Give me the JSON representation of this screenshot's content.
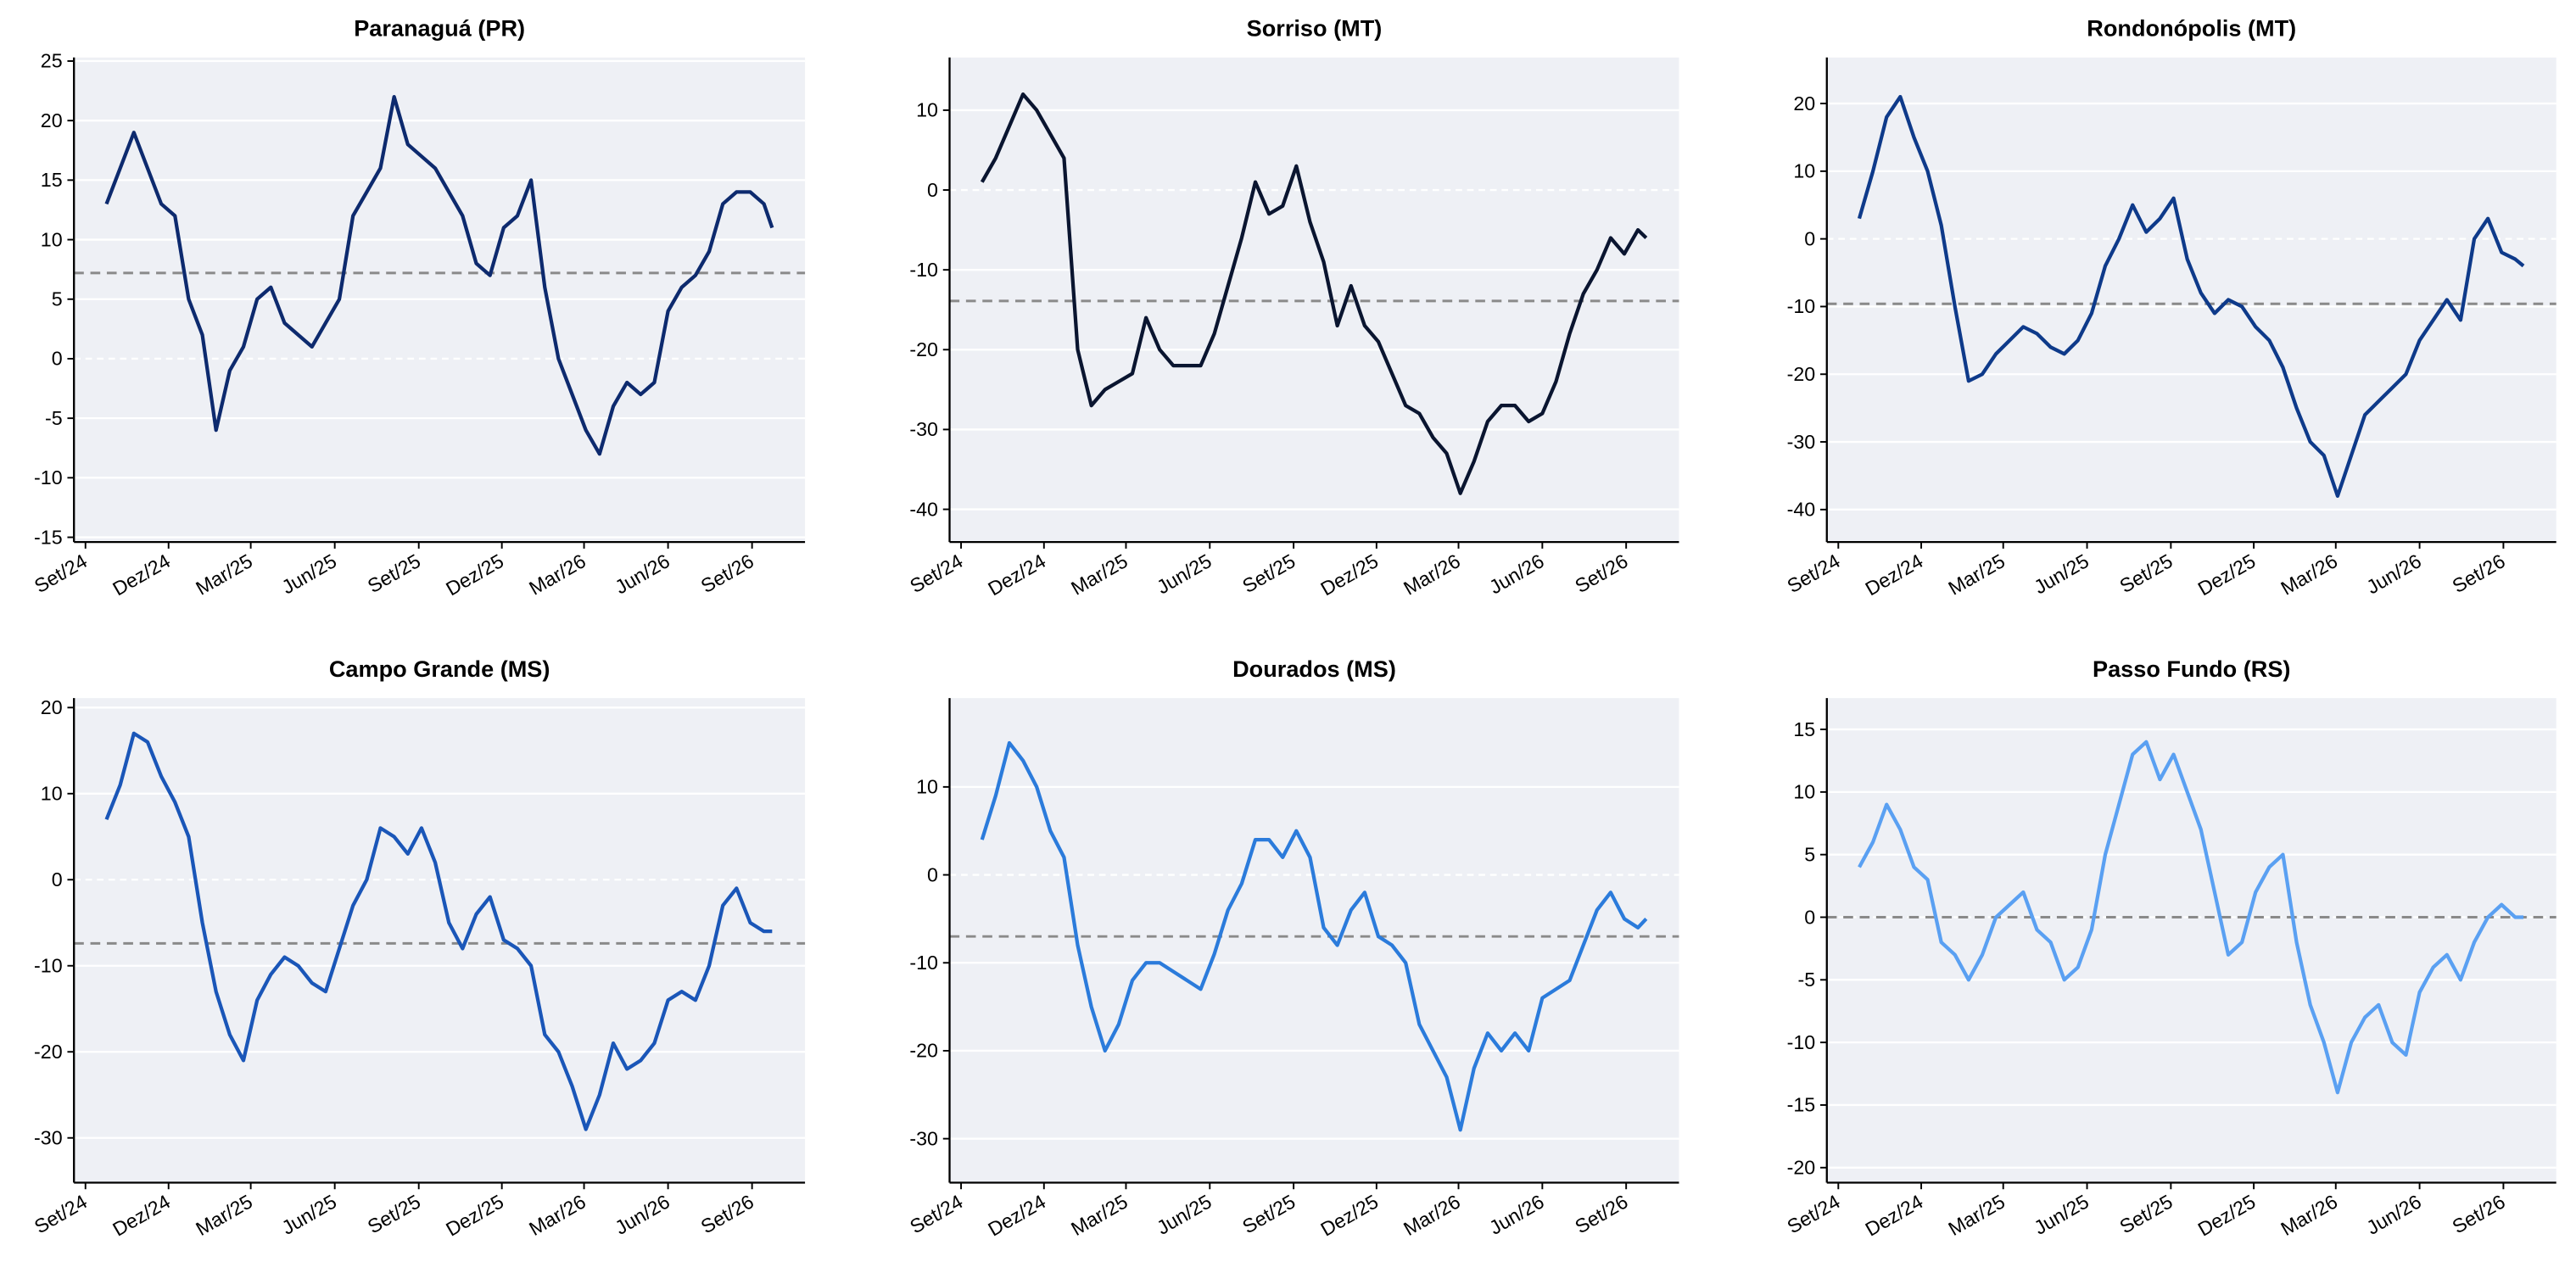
{
  "chart_data": [
    {
      "type": "line",
      "title": "Paranaguá (PR)",
      "color": "#0d2a6e",
      "reference_line": 7.2,
      "grid": true,
      "x": [
        23,
        38,
        53,
        68,
        83,
        98,
        113,
        128,
        143,
        158,
        173,
        188,
        203,
        218,
        233,
        248,
        263,
        278,
        293,
        308,
        323,
        338,
        353,
        368,
        383,
        398,
        413,
        428,
        443,
        458,
        473,
        488,
        503,
        518,
        533,
        548,
        563,
        578,
        593,
        608,
        623,
        638,
        653,
        668,
        683,
        698,
        713,
        728,
        743,
        752
      ],
      "values": [
        13,
        16,
        19,
        16,
        13,
        12,
        5,
        2,
        -6,
        -1,
        1,
        5,
        6,
        3,
        2,
        1,
        3,
        5,
        12,
        14,
        16,
        22,
        18,
        17,
        16,
        14,
        12,
        8,
        7,
        11,
        12,
        15,
        6,
        0,
        -3,
        -6,
        -8,
        -4,
        -2,
        -3,
        -2,
        4,
        6,
        7,
        9,
        13,
        14,
        14,
        13,
        11
      ],
      "xlim": [
        -12.6,
        788
      ],
      "xticks": [
        {
          "value": 0,
          "label": "Set/24"
        },
        {
          "value": 91,
          "label": "Dez/24"
        },
        {
          "value": 181,
          "label": "Mar/25"
        },
        {
          "value": 273,
          "label": "Jun/25"
        },
        {
          "value": 365,
          "label": "Set/25"
        },
        {
          "value": 456,
          "label": "Dez/25"
        },
        {
          "value": 546,
          "label": "Mar/26"
        },
        {
          "value": 638,
          "label": "Jun/26"
        },
        {
          "value": 730,
          "label": "Set/26"
        }
      ],
      "ylim": [
        -15.4,
        25.3
      ],
      "yticks": [
        -15,
        -10,
        -5,
        0,
        5,
        10,
        15,
        20,
        25
      ]
    },
    {
      "type": "line",
      "title": "Sorriso (MT)",
      "color": "#0a1530",
      "reference_line": -13.9,
      "grid": true,
      "x": [
        23,
        38,
        53,
        68,
        83,
        98,
        113,
        128,
        143,
        158,
        173,
        188,
        203,
        218,
        233,
        248,
        263,
        278,
        293,
        308,
        323,
        338,
        353,
        368,
        383,
        398,
        413,
        428,
        443,
        458,
        473,
        488,
        503,
        518,
        533,
        548,
        563,
        578,
        593,
        608,
        623,
        638,
        653,
        668,
        683,
        698,
        713,
        728,
        743,
        752
      ],
      "values": [
        1,
        4,
        8,
        12,
        10,
        7,
        4,
        -20,
        -27,
        -25,
        -24,
        -23,
        -16,
        -20,
        -22,
        -22,
        -22,
        -18,
        -12,
        -6,
        1,
        -3,
        -2,
        3,
        -4,
        -9,
        -17,
        -12,
        -17,
        -19,
        -23,
        -27,
        -28,
        -31,
        -33,
        -38,
        -34,
        -29,
        -27,
        -27,
        -29,
        -28,
        -24,
        -18,
        -13,
        -10,
        -6,
        -8,
        -5,
        -6
      ],
      "xlim": [
        -12.6,
        788
      ],
      "xticks": [
        {
          "value": 0,
          "label": "Set/24"
        },
        {
          "value": 91,
          "label": "Dez/24"
        },
        {
          "value": 181,
          "label": "Mar/25"
        },
        {
          "value": 273,
          "label": "Jun/25"
        },
        {
          "value": 365,
          "label": "Set/25"
        },
        {
          "value": 456,
          "label": "Dez/25"
        },
        {
          "value": 546,
          "label": "Mar/26"
        },
        {
          "value": 638,
          "label": "Jun/26"
        },
        {
          "value": 730,
          "label": "Set/26"
        }
      ],
      "ylim": [
        -44.1,
        16.6
      ],
      "yticks": [
        -40,
        -30,
        -20,
        -10,
        0,
        10
      ]
    },
    {
      "type": "line",
      "title": "Rondonópolis (MT)",
      "color": "#0e3a8a",
      "reference_line": -9.6,
      "grid": true,
      "x": [
        23,
        38,
        53,
        68,
        83,
        98,
        113,
        128,
        143,
        158,
        173,
        188,
        203,
        218,
        233,
        248,
        263,
        278,
        293,
        308,
        323,
        338,
        353,
        368,
        383,
        398,
        413,
        428,
        443,
        458,
        473,
        488,
        503,
        518,
        533,
        548,
        563,
        578,
        593,
        608,
        623,
        638,
        653,
        668,
        683,
        698,
        713,
        728,
        743,
        752
      ],
      "values": [
        3,
        10,
        18,
        21,
        15,
        10,
        2,
        -10,
        -21,
        -20,
        -17,
        -15,
        -13,
        -14,
        -16,
        -17,
        -15,
        -11,
        -4,
        0,
        5,
        1,
        3,
        6,
        -3,
        -8,
        -11,
        -9,
        -10,
        -13,
        -15,
        -19,
        -25,
        -30,
        -32,
        -38,
        -32,
        -26,
        -24,
        -22,
        -20,
        -15,
        -12,
        -9,
        -12,
        0,
        3,
        -2,
        -3,
        -4
      ],
      "xlim": [
        -12.6,
        788
      ],
      "xticks": [
        {
          "value": 0,
          "label": "Set/24"
        },
        {
          "value": 91,
          "label": "Dez/24"
        },
        {
          "value": 181,
          "label": "Mar/25"
        },
        {
          "value": 273,
          "label": "Jun/25"
        },
        {
          "value": 365,
          "label": "Set/25"
        },
        {
          "value": 456,
          "label": "Dez/25"
        },
        {
          "value": 546,
          "label": "Mar/26"
        },
        {
          "value": 638,
          "label": "Jun/26"
        },
        {
          "value": 730,
          "label": "Set/26"
        }
      ],
      "ylim": [
        -44.8,
        26.8
      ],
      "yticks": [
        -40,
        -30,
        -20,
        -10,
        0,
        10,
        20
      ]
    },
    {
      "type": "line",
      "title": "Campo Grande (MS)",
      "color": "#1a56b8",
      "reference_line": -7.4,
      "grid": true,
      "x": [
        23,
        38,
        53,
        68,
        83,
        98,
        113,
        128,
        143,
        158,
        173,
        188,
        203,
        218,
        233,
        248,
        263,
        278,
        293,
        308,
        323,
        338,
        353,
        368,
        383,
        398,
        413,
        428,
        443,
        458,
        473,
        488,
        503,
        518,
        533,
        548,
        563,
        578,
        593,
        608,
        623,
        638,
        653,
        668,
        683,
        698,
        713,
        728,
        743,
        752
      ],
      "values": [
        7,
        11,
        17,
        16,
        12,
        9,
        5,
        -5,
        -13,
        -18,
        -21,
        -14,
        -11,
        -9,
        -10,
        -12,
        -13,
        -8,
        -3,
        0,
        6,
        5,
        3,
        6,
        2,
        -5,
        -8,
        -4,
        -2,
        -7,
        -8,
        -10,
        -18,
        -20,
        -24,
        -29,
        -25,
        -19,
        -22,
        -21,
        -19,
        -14,
        -13,
        -14,
        -10,
        -3,
        -1,
        -5,
        -6,
        -6
      ],
      "xlim": [
        -12.6,
        788
      ],
      "xticks": [
        {
          "value": 0,
          "label": "Set/24"
        },
        {
          "value": 91,
          "label": "Dez/24"
        },
        {
          "value": 181,
          "label": "Mar/25"
        },
        {
          "value": 273,
          "label": "Jun/25"
        },
        {
          "value": 365,
          "label": "Set/25"
        },
        {
          "value": 456,
          "label": "Dez/25"
        },
        {
          "value": 546,
          "label": "Mar/26"
        },
        {
          "value": 638,
          "label": "Jun/26"
        },
        {
          "value": 730,
          "label": "Set/26"
        }
      ],
      "ylim": [
        -35.2,
        21.1
      ],
      "yticks": [
        -30,
        -20,
        -10,
        0,
        10,
        20
      ]
    },
    {
      "type": "line",
      "title": "Dourados (MS)",
      "color": "#2b7bdb",
      "reference_line": -7,
      "grid": true,
      "x": [
        23,
        38,
        53,
        68,
        83,
        98,
        113,
        128,
        143,
        158,
        173,
        188,
        203,
        218,
        233,
        248,
        263,
        278,
        293,
        308,
        323,
        338,
        353,
        368,
        383,
        398,
        413,
        428,
        443,
        458,
        473,
        488,
        503,
        518,
        533,
        548,
        563,
        578,
        593,
        608,
        623,
        638,
        653,
        668,
        683,
        698,
        713,
        728,
        743,
        752
      ],
      "values": [
        4,
        9,
        15,
        13,
        10,
        5,
        2,
        -8,
        -15,
        -20,
        -17,
        -12,
        -10,
        -10,
        -11,
        -12,
        -13,
        -9,
        -4,
        -1,
        4,
        4,
        2,
        5,
        2,
        -6,
        -8,
        -4,
        -2,
        -7,
        -8,
        -10,
        -17,
        -20,
        -23,
        -29,
        -22,
        -18,
        -20,
        -18,
        -20,
        -14,
        -13,
        -12,
        -8,
        -4,
        -2,
        -5,
        -6,
        -5
      ],
      "xlim": [
        -12.6,
        788
      ],
      "xticks": [
        {
          "value": 0,
          "label": "Set/24"
        },
        {
          "value": 91,
          "label": "Dez/24"
        },
        {
          "value": 181,
          "label": "Mar/25"
        },
        {
          "value": 273,
          "label": "Jun/25"
        },
        {
          "value": 365,
          "label": "Set/25"
        },
        {
          "value": 456,
          "label": "Dez/25"
        },
        {
          "value": 546,
          "label": "Mar/26"
        },
        {
          "value": 638,
          "label": "Jun/26"
        },
        {
          "value": 730,
          "label": "Set/26"
        }
      ],
      "ylim": [
        -35.0,
        20.1
      ],
      "yticks": [
        -30,
        -20,
        -10,
        0,
        10
      ]
    },
    {
      "type": "line",
      "title": "Passo Fundo (RS)",
      "color": "#5aa0f2",
      "reference_line": 0,
      "grid": true,
      "x": [
        23,
        38,
        53,
        68,
        83,
        98,
        113,
        128,
        143,
        158,
        173,
        188,
        203,
        218,
        233,
        248,
        263,
        278,
        293,
        308,
        323,
        338,
        353,
        368,
        383,
        398,
        413,
        428,
        443,
        458,
        473,
        488,
        503,
        518,
        533,
        548,
        563,
        578,
        593,
        608,
        623,
        638,
        653,
        668,
        683,
        698,
        713,
        728,
        743,
        752
      ],
      "values": [
        4,
        6,
        9,
        7,
        4,
        3,
        -2,
        -3,
        -5,
        -3,
        0,
        1,
        2,
        -1,
        -2,
        -5,
        -4,
        -1,
        5,
        9,
        13,
        14,
        11,
        13,
        10,
        7,
        2,
        -3,
        -2,
        2,
        4,
        5,
        -2,
        -7,
        -10,
        -14,
        -10,
        -8,
        -7,
        -10,
        -11,
        -6,
        -4,
        -3,
        -5,
        -2,
        0,
        1,
        0,
        0
      ],
      "xlim": [
        -12.6,
        788
      ],
      "xticks": [
        {
          "value": 0,
          "label": "Set/24"
        },
        {
          "value": 91,
          "label": "Dez/24"
        },
        {
          "value": 181,
          "label": "Mar/25"
        },
        {
          "value": 273,
          "label": "Jun/25"
        },
        {
          "value": 365,
          "label": "Set/25"
        },
        {
          "value": 456,
          "label": "Dez/25"
        },
        {
          "value": 546,
          "label": "Mar/26"
        },
        {
          "value": 638,
          "label": "Jun/26"
        },
        {
          "value": 730,
          "label": "Set/26"
        }
      ],
      "ylim": [
        -21.2,
        17.5
      ],
      "yticks": [
        -20,
        -15,
        -10,
        -5,
        0,
        5,
        10,
        15
      ]
    }
  ]
}
